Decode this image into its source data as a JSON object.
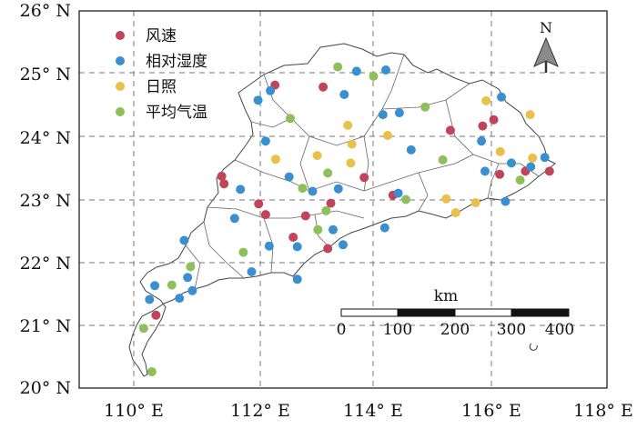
{
  "map": {
    "x_ticks": [
      "110° E",
      "112° E",
      "114° E",
      "116° E",
      "118° E"
    ],
    "y_ticks": [
      "26° N",
      "25° N",
      "24° N",
      "23° N",
      "22° N",
      "21° N",
      "20° N"
    ],
    "x_range": [
      109.0,
      118.0
    ],
    "y_range": [
      20.0,
      26.0
    ],
    "gridlines": "dashed",
    "north_label": "N",
    "scale_unit": "km",
    "scale_ticks": [
      "0",
      "100",
      "200",
      "300",
      "400"
    ],
    "legend": [
      {
        "key": "wind",
        "label": "风速",
        "color": "#c0445a"
      },
      {
        "key": "humidity",
        "label": "相对湿度",
        "color": "#3a8fd0"
      },
      {
        "key": "sunshine",
        "label": "日照",
        "color": "#e9c04a"
      },
      {
        "key": "temperature",
        "label": "平均气温",
        "color": "#8dc05a"
      }
    ],
    "stations": [
      {
        "type": "wind",
        "lon": 112.34,
        "lat": 24.82
      },
      {
        "type": "wind",
        "lon": 113.16,
        "lat": 24.79
      },
      {
        "type": "wind",
        "lon": 111.43,
        "lat": 23.37
      },
      {
        "type": "wind",
        "lon": 111.47,
        "lat": 23.25
      },
      {
        "type": "wind",
        "lon": 112.06,
        "lat": 22.93
      },
      {
        "type": "wind",
        "lon": 112.18,
        "lat": 22.76
      },
      {
        "type": "wind",
        "lon": 112.65,
        "lat": 22.4
      },
      {
        "type": "wind",
        "lon": 112.86,
        "lat": 22.74
      },
      {
        "type": "wind",
        "lon": 113.24,
        "lat": 22.22
      },
      {
        "type": "wind",
        "lon": 113.29,
        "lat": 22.94
      },
      {
        "type": "wind",
        "lon": 113.86,
        "lat": 23.35
      },
      {
        "type": "wind",
        "lon": 114.35,
        "lat": 23.07
      },
      {
        "type": "wind",
        "lon": 115.33,
        "lat": 24.1
      },
      {
        "type": "wind",
        "lon": 115.88,
        "lat": 24.17
      },
      {
        "type": "wind",
        "lon": 116.07,
        "lat": 24.27
      },
      {
        "type": "wind",
        "lon": 116.17,
        "lat": 23.4
      },
      {
        "type": "wind",
        "lon": 116.61,
        "lat": 23.45
      },
      {
        "type": "wind",
        "lon": 117.02,
        "lat": 23.45
      },
      {
        "type": "wind",
        "lon": 110.31,
        "lat": 21.16
      },
      {
        "type": "humidity",
        "lon": 112.05,
        "lat": 24.58
      },
      {
        "type": "humidity",
        "lon": 112.26,
        "lat": 24.73
      },
      {
        "type": "humidity",
        "lon": 113.73,
        "lat": 25.04
      },
      {
        "type": "humidity",
        "lon": 114.23,
        "lat": 25.06
      },
      {
        "type": "humidity",
        "lon": 113.52,
        "lat": 24.67
      },
      {
        "type": "humidity",
        "lon": 114.18,
        "lat": 24.35
      },
      {
        "type": "humidity",
        "lon": 114.46,
        "lat": 24.38
      },
      {
        "type": "humidity",
        "lon": 116.2,
        "lat": 24.63
      },
      {
        "type": "humidity",
        "lon": 112.18,
        "lat": 23.93
      },
      {
        "type": "humidity",
        "lon": 111.75,
        "lat": 23.16
      },
      {
        "type": "humidity",
        "lon": 112.58,
        "lat": 23.36
      },
      {
        "type": "humidity",
        "lon": 112.98,
        "lat": 23.13
      },
      {
        "type": "humidity",
        "lon": 113.42,
        "lat": 23.17
      },
      {
        "type": "humidity",
        "lon": 114.44,
        "lat": 23.1
      },
      {
        "type": "humidity",
        "lon": 114.66,
        "lat": 23.79
      },
      {
        "type": "humidity",
        "lon": 115.86,
        "lat": 23.93
      },
      {
        "type": "humidity",
        "lon": 115.92,
        "lat": 23.45
      },
      {
        "type": "humidity",
        "lon": 116.37,
        "lat": 23.58
      },
      {
        "type": "humidity",
        "lon": 116.7,
        "lat": 23.52
      },
      {
        "type": "humidity",
        "lon": 116.94,
        "lat": 23.67
      },
      {
        "type": "humidity",
        "lon": 116.27,
        "lat": 22.97
      },
      {
        "type": "humidity",
        "lon": 111.65,
        "lat": 22.7
      },
      {
        "type": "humidity",
        "lon": 112.24,
        "lat": 22.26
      },
      {
        "type": "humidity",
        "lon": 112.72,
        "lat": 22.25
      },
      {
        "type": "humidity",
        "lon": 113.33,
        "lat": 22.52
      },
      {
        "type": "humidity",
        "lon": 113.5,
        "lat": 22.28
      },
      {
        "type": "humidity",
        "lon": 114.21,
        "lat": 22.55
      },
      {
        "type": "humidity",
        "lon": 111.94,
        "lat": 21.85
      },
      {
        "type": "humidity",
        "lon": 112.72,
        "lat": 21.73
      },
      {
        "type": "humidity",
        "lon": 110.79,
        "lat": 22.35
      },
      {
        "type": "humidity",
        "lon": 110.85,
        "lat": 21.76
      },
      {
        "type": "humidity",
        "lon": 110.93,
        "lat": 21.55
      },
      {
        "type": "humidity",
        "lon": 110.71,
        "lat": 21.43
      },
      {
        "type": "humidity",
        "lon": 110.29,
        "lat": 21.63
      },
      {
        "type": "humidity",
        "lon": 110.2,
        "lat": 21.41
      },
      {
        "type": "sunshine",
        "lon": 113.58,
        "lat": 24.18
      },
      {
        "type": "sunshine",
        "lon": 113.65,
        "lat": 23.88
      },
      {
        "type": "sunshine",
        "lon": 113.63,
        "lat": 23.58
      },
      {
        "type": "sunshine",
        "lon": 113.06,
        "lat": 23.7
      },
      {
        "type": "sunshine",
        "lon": 112.35,
        "lat": 23.64
      },
      {
        "type": "sunshine",
        "lon": 114.26,
        "lat": 24.02
      },
      {
        "type": "sunshine",
        "lon": 115.42,
        "lat": 22.79
      },
      {
        "type": "sunshine",
        "lon": 115.26,
        "lat": 23.01
      },
      {
        "type": "sunshine",
        "lon": 115.76,
        "lat": 22.95
      },
      {
        "type": "sunshine",
        "lon": 115.94,
        "lat": 24.57
      },
      {
        "type": "sunshine",
        "lon": 116.69,
        "lat": 24.35
      },
      {
        "type": "sunshine",
        "lon": 116.18,
        "lat": 23.76
      },
      {
        "type": "sunshine",
        "lon": 116.73,
        "lat": 23.66
      },
      {
        "type": "temperature",
        "lon": 113.41,
        "lat": 25.11
      },
      {
        "type": "temperature",
        "lon": 114.02,
        "lat": 24.96
      },
      {
        "type": "temperature",
        "lon": 112.6,
        "lat": 24.29
      },
      {
        "type": "temperature",
        "lon": 114.9,
        "lat": 24.47
      },
      {
        "type": "temperature",
        "lon": 113.24,
        "lat": 23.42
      },
      {
        "type": "temperature",
        "lon": 112.81,
        "lat": 23.18
      },
      {
        "type": "temperature",
        "lon": 113.21,
        "lat": 22.82
      },
      {
        "type": "temperature",
        "lon": 113.07,
        "lat": 22.52
      },
      {
        "type": "temperature",
        "lon": 111.8,
        "lat": 22.16
      },
      {
        "type": "temperature",
        "lon": 114.57,
        "lat": 23.0
      },
      {
        "type": "temperature",
        "lon": 115.2,
        "lat": 23.63
      },
      {
        "type": "temperature",
        "lon": 116.52,
        "lat": 23.31
      },
      {
        "type": "temperature",
        "lon": 110.9,
        "lat": 21.93
      },
      {
        "type": "temperature",
        "lon": 110.58,
        "lat": 21.64
      },
      {
        "type": "temperature",
        "lon": 110.1,
        "lat": 20.95
      },
      {
        "type": "temperature",
        "lon": 110.24,
        "lat": 20.26
      }
    ]
  }
}
